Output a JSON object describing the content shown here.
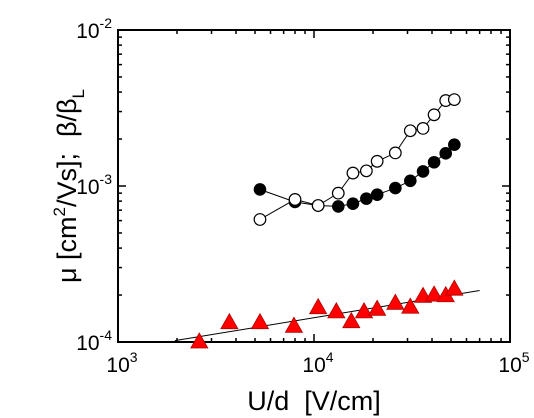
{
  "chart_data": {
    "type": "scatter",
    "title": "",
    "x_scale": "log",
    "y_scale": "log",
    "xlim": [
      1000,
      100000
    ],
    "ylim": [
      0.0001,
      0.01
    ],
    "grid": false,
    "legend": "none",
    "xlabel": "U/d  [V/cm]",
    "ylabel_parts": {
      "mu": "μ [cm",
      "mu_sup": "2",
      "mu_end": "/Vs];",
      "beta": "β/β",
      "beta_sub": "L"
    },
    "x_ticks": [
      {
        "value": 1000,
        "base": "10",
        "exp": "3"
      },
      {
        "value": 10000,
        "base": "10",
        "exp": "4"
      },
      {
        "value": 100000,
        "base": "10",
        "exp": "5"
      }
    ],
    "y_ticks": [
      {
        "value": 0.0001,
        "base": "10",
        "exp": "-4"
      },
      {
        "value": 0.001,
        "base": "10",
        "exp": "-3"
      },
      {
        "value": 0.01,
        "base": "10",
        "exp": "-2"
      }
    ],
    "series": [
      {
        "marker": "triangle",
        "color": "#ff0000",
        "line": false,
        "x": [
          2600,
          3700,
          5300,
          7900,
          10500,
          13000,
          15500,
          18000,
          21000,
          26000,
          31000,
          36000,
          41000,
          47000,
          52000
        ],
        "y": [
          0.0001,
          0.000133,
          0.000133,
          0.000126,
          0.000166,
          0.000156,
          0.000135,
          0.000156,
          0.000162,
          0.000177,
          0.000167,
          0.000196,
          0.0002,
          0.000198,
          0.000218
        ]
      },
      {
        "marker": "circle-filled",
        "color": "#000000",
        "line": true,
        "x": [
          5300,
          8000,
          10500,
          13300,
          15800,
          18500,
          21000,
          26000,
          31000,
          36000,
          41000,
          47000,
          52000
        ],
        "y": [
          0.00095,
          0.00079,
          0.00075,
          0.00074,
          0.00077,
          0.00083,
          0.00088,
          0.00097,
          0.00108,
          0.00124,
          0.00142,
          0.00162,
          0.00184
        ]
      },
      {
        "marker": "circle-open",
        "color": "#000000",
        "line": true,
        "x": [
          5300,
          8000,
          10500,
          13300,
          15800,
          18500,
          21000,
          26000,
          31000,
          36000,
          41000,
          47000,
          52000
        ],
        "y": [
          0.00061,
          0.00082,
          0.00075,
          0.0009,
          0.00121,
          0.00125,
          0.00144,
          0.00163,
          0.00226,
          0.00234,
          0.00286,
          0.00353,
          0.00358
        ]
      }
    ],
    "fit_line": {
      "color": "#000000",
      "x": [
        1950,
        70000
      ],
      "y": [
        0.000102,
        0.000214
      ]
    }
  }
}
